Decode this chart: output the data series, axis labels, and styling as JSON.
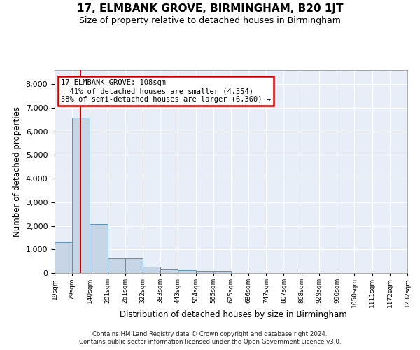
{
  "title": "17, ELMBANK GROVE, BIRMINGHAM, B20 1JT",
  "subtitle": "Size of property relative to detached houses in Birmingham",
  "xlabel": "Distribution of detached houses by size in Birmingham",
  "ylabel": "Number of detached properties",
  "footer_line1": "Contains HM Land Registry data © Crown copyright and database right 2024.",
  "footer_line2": "Contains public sector information licensed under the Open Government Licence v3.0.",
  "annotation_line1": "17 ELMBANK GROVE: 108sqm",
  "annotation_line2": "← 41% of detached houses are smaller (4,554)",
  "annotation_line3": "58% of semi-detached houses are larger (6,360) →",
  "property_size_sqm": 108,
  "bar_color": "#c5d5e5",
  "bar_edge_color": "#6090b0",
  "red_line_color": "#cc0000",
  "annotation_box_edgecolor": "#cc0000",
  "bg_color": "#e8eef8",
  "grid_color": "#ffffff",
  "fig_bg": "#ffffff",
  "ylim": [
    0,
    8600
  ],
  "yticks": [
    0,
    1000,
    2000,
    3000,
    4000,
    5000,
    6000,
    7000,
    8000
  ],
  "bin_edges": [
    19,
    79,
    140,
    201,
    261,
    322,
    383,
    443,
    504,
    565,
    625,
    686,
    747,
    807,
    868,
    929,
    990,
    1050,
    1111,
    1172,
    1232
  ],
  "bin_labels": [
    "19sqm",
    "79sqm",
    "140sqm",
    "201sqm",
    "261sqm",
    "322sqm",
    "383sqm",
    "443sqm",
    "504sqm",
    "565sqm",
    "625sqm",
    "686sqm",
    "747sqm",
    "807sqm",
    "868sqm",
    "929sqm",
    "990sqm",
    "1050sqm",
    "1111sqm",
    "1172sqm",
    "1232sqm"
  ],
  "bar_heights": [
    1300,
    6570,
    2090,
    620,
    620,
    255,
    140,
    110,
    100,
    75,
    0,
    0,
    0,
    0,
    0,
    0,
    0,
    0,
    0,
    0
  ]
}
